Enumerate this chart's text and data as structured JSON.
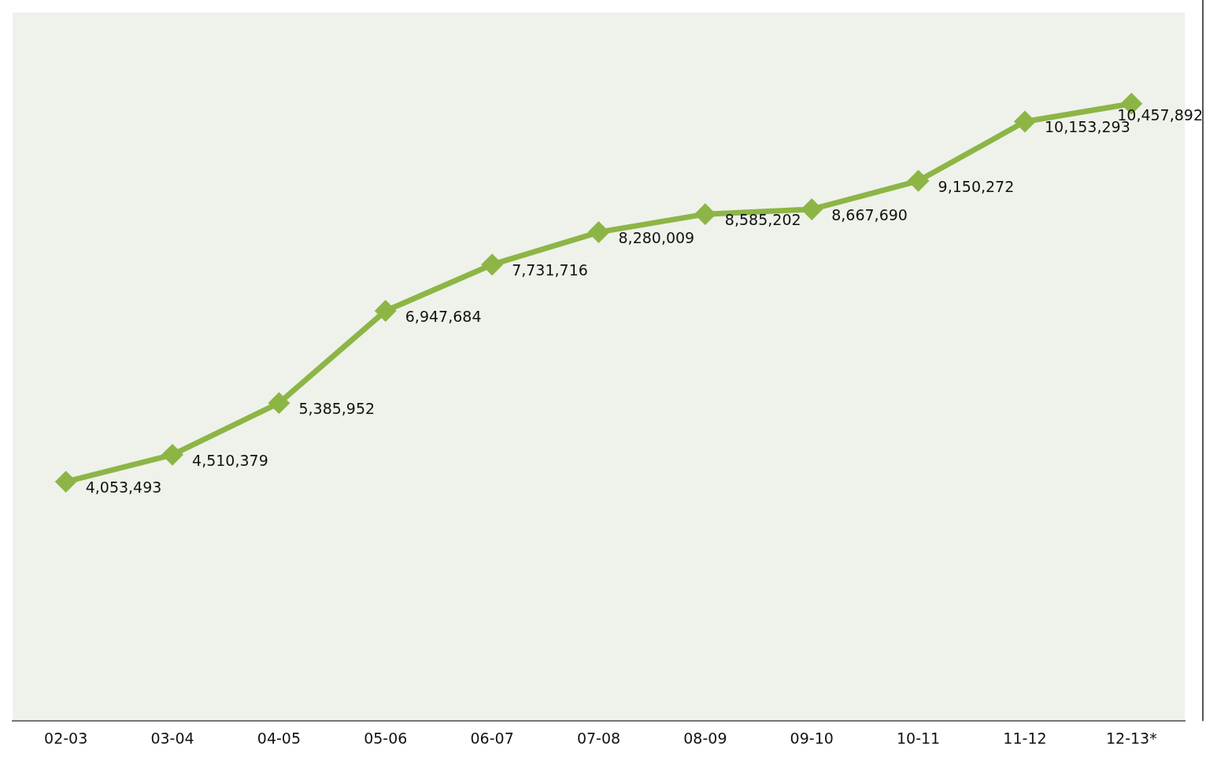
{
  "chart_data": {
    "type": "line",
    "categories": [
      "02-03",
      "03-04",
      "04-05",
      "05-06",
      "06-07",
      "07-08",
      "08-09",
      "09-10",
      "10-11",
      "11-12",
      "12-13*"
    ],
    "series": [
      {
        "color": "#8db546",
        "values": [
          4053493,
          4510379,
          5385952,
          6947684,
          7731716,
          8280009,
          8585202,
          8667690,
          9150272,
          10153293,
          10457892
        ],
        "value_labels": [
          "4,053,493",
          "4,510,379",
          "5,385,952",
          "6,947,684",
          "7,731,716",
          "8,280,009",
          "8,585,202",
          "8,667,690",
          "9,150,272",
          "10,153,293",
          "10,457,892"
        ]
      }
    ],
    "ylim": [
      0,
      12000000
    ],
    "grid": false,
    "legend": false,
    "marker": "diamond",
    "line_style": "solid",
    "tick_labels": "x"
  }
}
